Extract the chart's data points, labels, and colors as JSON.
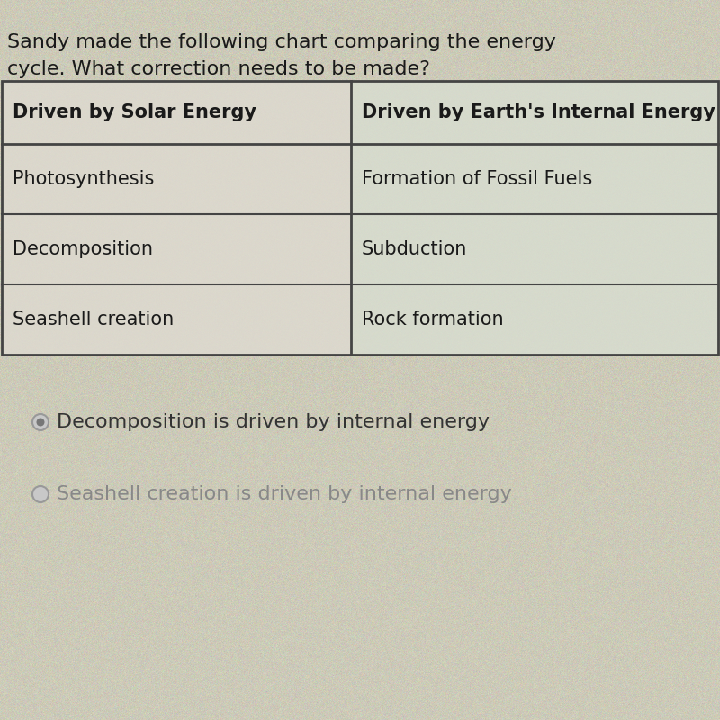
{
  "title_line1": "Sandy made the following chart comparing the energy",
  "title_line2": "cycle. What correction needs to be made?",
  "col_header1": "Driven by Solar Energy",
  "col_header2_full": "Driven by Earth's Internal Energy",
  "table_data": [
    [
      "Photosynthesis",
      "Formation of Fossil Fuels"
    ],
    [
      "Decomposition",
      "Subduction"
    ],
    [
      "Seashell creation",
      "Rock formation"
    ]
  ],
  "answer_options": [
    {
      "text": "Decomposition is driven by internal energy",
      "selected": true,
      "text_color": "#333333"
    },
    {
      "text": "Seashell creation is driven by internal energy",
      "selected": false,
      "text_color": "#888888"
    }
  ],
  "bg_color": "#cccab8",
  "table_bg_left": "#dedad0",
  "table_bg_right": "#d8ddd0",
  "header_bg": "#d4d0c4",
  "border_color": "#444444",
  "text_color": "#1a1a1a",
  "title_fontsize": 16,
  "header_fontsize": 15,
  "cell_fontsize": 15,
  "answer_fontsize": 16
}
